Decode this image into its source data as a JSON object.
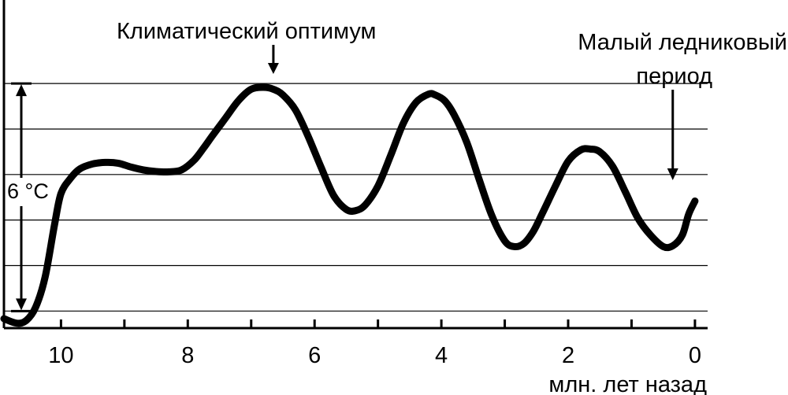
{
  "chart_data": {
    "type": "line",
    "title": "",
    "xlabel": "млн. лет назад",
    "ylabel": "",
    "xlim": [
      10.9,
      -0.2
    ],
    "ylim": [
      -0.45,
      6.75
    ],
    "x_reversed": true,
    "grid": true,
    "x_ticks": [
      10,
      9,
      8,
      7,
      6,
      5,
      4,
      3,
      2,
      1,
      0
    ],
    "x_tick_labels": [
      {
        "x": 10,
        "label": "10"
      },
      {
        "x": 8,
        "label": "8"
      },
      {
        "x": 6,
        "label": "6"
      },
      {
        "x": 4,
        "label": "4"
      },
      {
        "x": 2,
        "label": "2"
      },
      {
        "x": 0,
        "label": "0"
      }
    ],
    "y_gridlines": [
      0,
      1.2,
      2.4,
      3.6,
      4.8,
      6.0
    ],
    "series": [
      {
        "name": "",
        "x": [
          10.9,
          10.7,
          10.55,
          10.4,
          10.25,
          10.1,
          10.0,
          9.85,
          9.7,
          9.5,
          9.3,
          9.1,
          8.9,
          8.7,
          8.5,
          8.3,
          8.1,
          7.9,
          7.75,
          7.6,
          7.4,
          7.2,
          7.0,
          6.8,
          6.65,
          6.5,
          6.3,
          6.1,
          5.9,
          5.7,
          5.5,
          5.35,
          5.2,
          5.0,
          4.8,
          4.6,
          4.4,
          4.2,
          4.1,
          3.95,
          3.8,
          3.6,
          3.4,
          3.2,
          3.0,
          2.85,
          2.7,
          2.55,
          2.4,
          2.2,
          2.0,
          1.8,
          1.65,
          1.5,
          1.3,
          1.1,
          0.9,
          0.7,
          0.5,
          0.35,
          0.2,
          0.1,
          0.0
        ],
        "y": [
          -0.2,
          -0.32,
          -0.25,
          0.1,
          0.9,
          2.3,
          3.1,
          3.5,
          3.75,
          3.88,
          3.92,
          3.9,
          3.8,
          3.72,
          3.68,
          3.67,
          3.72,
          3.98,
          4.3,
          4.65,
          5.1,
          5.55,
          5.85,
          5.9,
          5.85,
          5.7,
          5.3,
          4.6,
          3.8,
          3.05,
          2.68,
          2.65,
          2.8,
          3.3,
          4.1,
          4.95,
          5.5,
          5.72,
          5.7,
          5.55,
          5.18,
          4.45,
          3.45,
          2.5,
          1.85,
          1.7,
          1.78,
          2.1,
          2.6,
          3.3,
          3.95,
          4.25,
          4.27,
          4.2,
          3.82,
          3.15,
          2.45,
          2.0,
          1.7,
          1.72,
          2.0,
          2.55,
          2.9
        ]
      }
    ],
    "annotations": [
      {
        "id": "optimum",
        "text": "Климатический оптимум",
        "x": 6.65
      },
      {
        "id": "little-ice-age",
        "lines": [
          "Малый ледниковый",
          "период"
        ],
        "x": 0.35
      }
    ],
    "scale_bar": {
      "label": "6 °C",
      "y_from": 0,
      "y_to": 6.0
    }
  }
}
